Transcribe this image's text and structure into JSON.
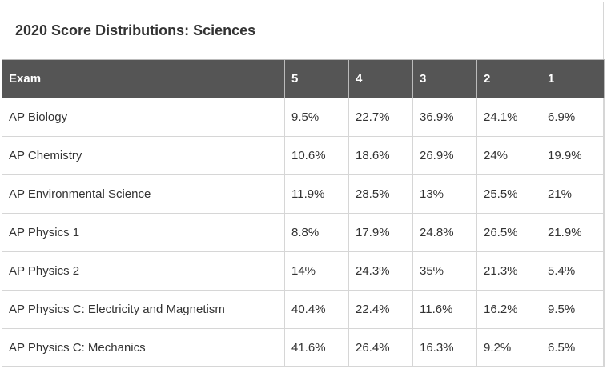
{
  "title": "2020 Score Distributions: Sciences",
  "table": {
    "headers": [
      "Exam",
      "5",
      "4",
      "3",
      "2",
      "1"
    ],
    "rows": [
      [
        "AP Biology",
        "9.5%",
        "22.7%",
        "36.9%",
        "24.1%",
        "6.9%"
      ],
      [
        "AP Chemistry",
        "10.6%",
        "18.6%",
        "26.9%",
        "24%",
        "19.9%"
      ],
      [
        "AP Environmental Science",
        "11.9%",
        "28.5%",
        "13%",
        "25.5%",
        "21%"
      ],
      [
        "AP Physics 1",
        "8.8%",
        "17.9%",
        "24.8%",
        "26.5%",
        "21.9%"
      ],
      [
        "AP Physics 2",
        "14%",
        "24.3%",
        "35%",
        "21.3%",
        "5.4%"
      ],
      [
        "AP Physics C: Electricity and Magnetism",
        "40.4%",
        "22.4%",
        "11.6%",
        "16.2%",
        "9.5%"
      ],
      [
        "AP Physics C: Mechanics",
        "41.6%",
        "26.4%",
        "16.3%",
        "9.2%",
        "6.5%"
      ]
    ]
  }
}
